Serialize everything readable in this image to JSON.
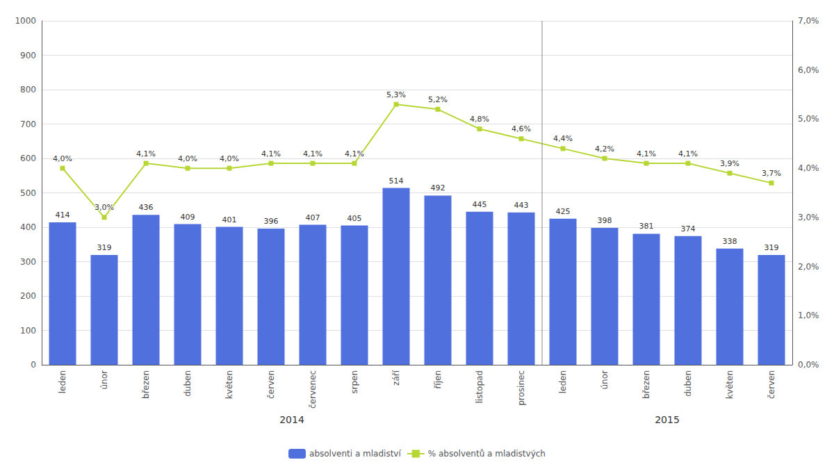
{
  "chart_data": {
    "type": "bar",
    "categories": [
      "leden",
      "únor",
      "březen",
      "duben",
      "květen",
      "červen",
      "červenec",
      "srpen",
      "září",
      "říjen",
      "listopad",
      "prosinec",
      "leden",
      "únor",
      "březen",
      "duben",
      "květen",
      "červen"
    ],
    "series": [
      {
        "name": "absolventi a mladiství",
        "type": "bar",
        "values": [
          414,
          319,
          436,
          409,
          401,
          396,
          407,
          405,
          514,
          492,
          445,
          443,
          425,
          398,
          381,
          374,
          338,
          319
        ],
        "data_labels": true
      },
      {
        "name": "% absolventů a mladistvých",
        "type": "line",
        "axis": "y2",
        "marker": "square",
        "values": [
          4.0,
          3.0,
          4.1,
          4.0,
          4.0,
          4.1,
          4.1,
          4.1,
          5.3,
          5.2,
          4.8,
          4.6,
          4.4,
          4.2,
          4.1,
          4.1,
          3.9,
          3.7
        ],
        "value_labels": [
          "4,0%",
          "3,0%",
          "4,1%",
          "4,0%",
          "4,0%",
          "4,1%",
          "4,1%",
          "4,1%",
          "5,3%",
          "5,2%",
          "4,8%",
          "4,6%",
          "4,4%",
          "4,2%",
          "4,1%",
          "4,1%",
          "3,9%",
          "3,7%"
        ],
        "data_labels": true
      }
    ],
    "ylim": [
      0,
      1000
    ],
    "yticks": [
      0,
      100,
      200,
      300,
      400,
      500,
      600,
      700,
      800,
      900,
      1000
    ],
    "y2lim": [
      0.0,
      7.0
    ],
    "y2ticks": [
      {
        "value": 0.0,
        "label": "0,0%"
      },
      {
        "value": 1.0,
        "label": "1,0%"
      },
      {
        "value": 2.0,
        "label": "2,0%"
      },
      {
        "value": 3.0,
        "label": "3,0%"
      },
      {
        "value": 4.0,
        "label": "4,0%"
      },
      {
        "value": 5.0,
        "label": "5,0%"
      },
      {
        "value": 6.0,
        "label": "6,0%"
      },
      {
        "value": 7.0,
        "label": "7,0%"
      }
    ],
    "annotations": [
      {
        "text": "2014",
        "start": 0,
        "end": 11
      },
      {
        "text": "2015",
        "start": 12,
        "end": 17
      }
    ],
    "grid": true,
    "legend": "bottom"
  }
}
